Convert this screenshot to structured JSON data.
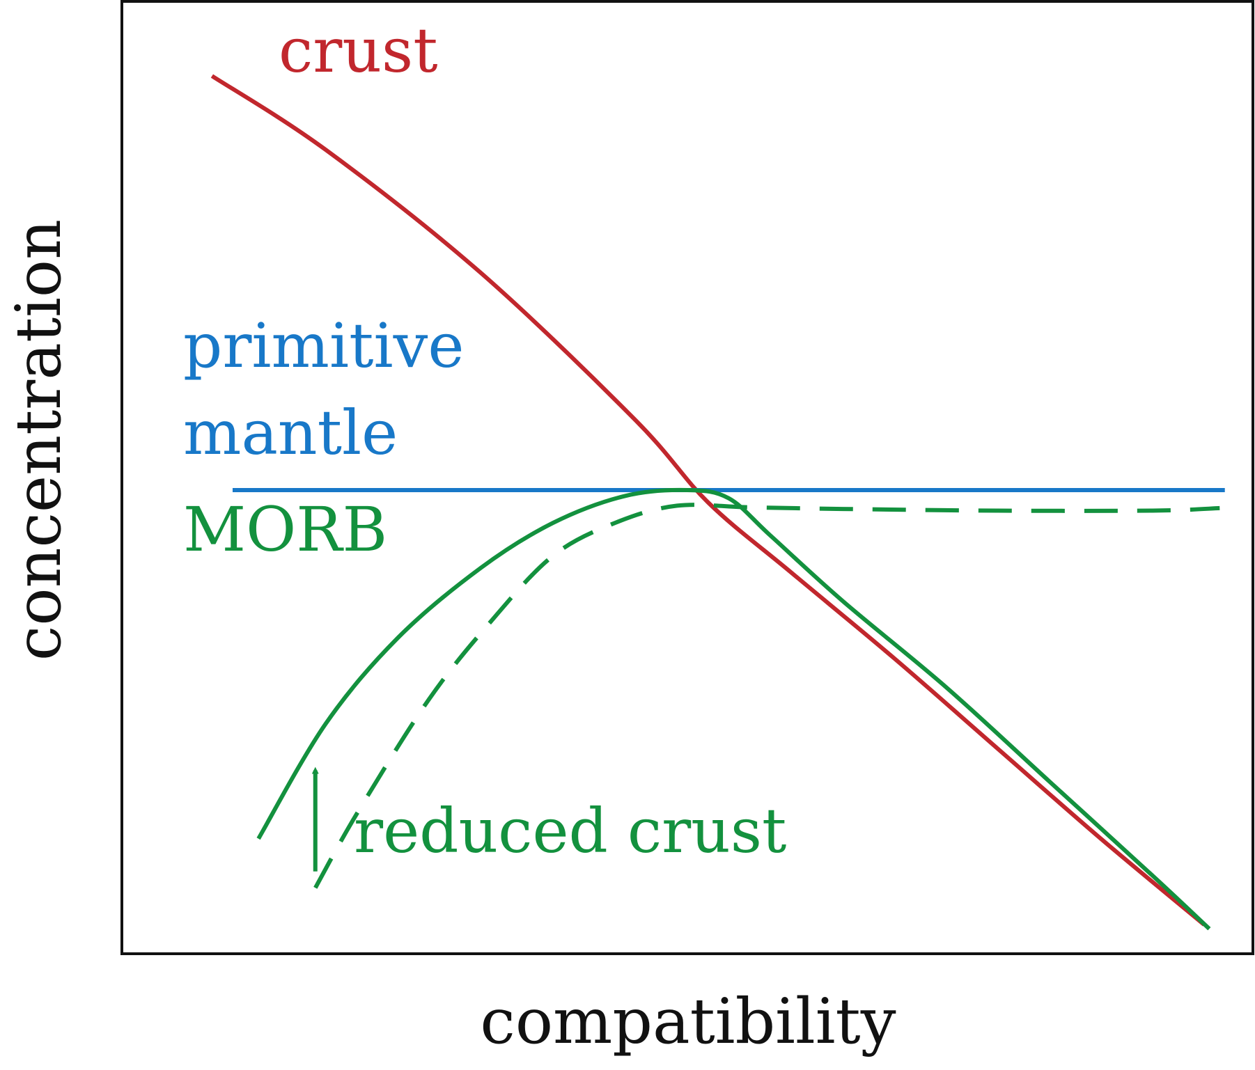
{
  "chart_data": {
    "type": "line",
    "title": "",
    "xlabel": "compatibility",
    "ylabel": "concentration",
    "xlim": [
      0,
      100
    ],
    "ylim": [
      0,
      100
    ],
    "grid": false,
    "ticks": false,
    "series": [
      {
        "name": "crust",
        "color": "#c1272d",
        "style": "solid",
        "x": [
          4,
          15,
          30,
          45,
          52,
          60,
          70,
          80,
          90,
          100
        ],
        "y": [
          96,
          87,
          72,
          54,
          44,
          35.5,
          25,
          14,
          3,
          -7.5
        ]
      },
      {
        "name": "primitive mantle",
        "color": "#1878c8",
        "style": "solid",
        "x": [
          6,
          102
        ],
        "y": [
          45.5,
          45.5
        ]
      },
      {
        "name": "MORB",
        "color": "#13913e",
        "style": "solid",
        "x": [
          8.5,
          15,
          22,
          30,
          37,
          44,
          50,
          54,
          58,
          65,
          75,
          85,
          95,
          100.5
        ],
        "y": [
          3,
          17,
          27.5,
          36,
          41.5,
          44.8,
          45.5,
          44.5,
          40,
          32,
          21.5,
          10,
          -1.5,
          -8
        ]
      },
      {
        "name": "reduced crust",
        "color": "#13913e",
        "style": "dashed",
        "x": [
          14,
          18,
          25,
          31,
          37,
          43,
          49,
          56,
          65,
          80,
          95,
          101.5
        ],
        "y": [
          -3,
          6,
          20,
          29.5,
          37.5,
          41.5,
          43.6,
          43.4,
          43.2,
          43,
          43,
          43.3
        ]
      }
    ],
    "annotations": [
      {
        "text": "crust",
        "color": "#c1272d"
      },
      {
        "text": "primitive",
        "color": "#1878c8"
      },
      {
        "text": "mantle",
        "color": "#1878c8"
      },
      {
        "text": "MORB",
        "color": "#13913e"
      },
      {
        "text": "reduced crust",
        "color": "#13913e"
      }
    ],
    "arrow": {
      "color": "#13913e",
      "direction": "up",
      "from_y": -1,
      "to_y": 12,
      "at_x": 14
    }
  }
}
